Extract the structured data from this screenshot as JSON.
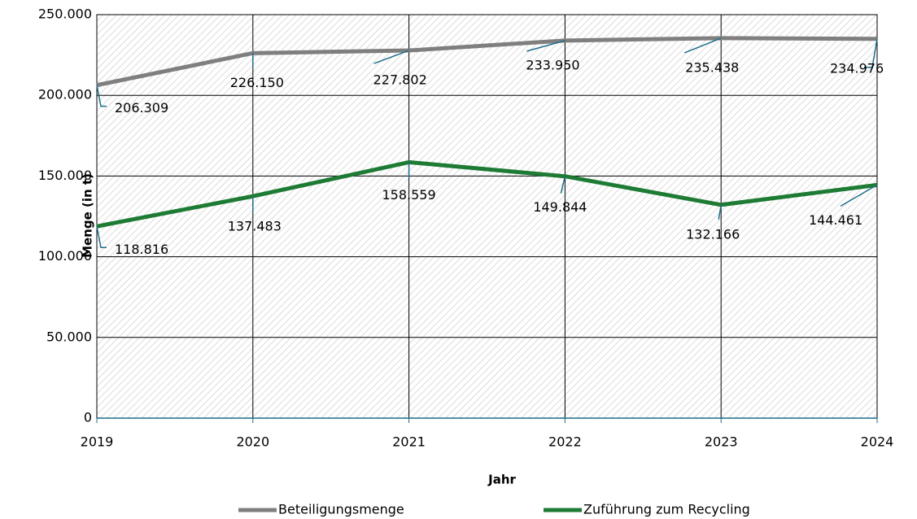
{
  "chart_data": {
    "type": "line",
    "categories": [
      "2019",
      "2020",
      "2021",
      "2022",
      "2023",
      "2024"
    ],
    "series": [
      {
        "name": "Beteiligungsmenge",
        "color": "#7f7f7f",
        "values": [
          206309,
          226150,
          227802,
          233950,
          235438,
          234976
        ],
        "value_labels": [
          "206.309",
          "226.150",
          "227.802",
          "233.950",
          "235.438",
          "234.976"
        ]
      },
      {
        "name": "Zuführung zum Recycling",
        "color": "#1e7b34",
        "values": [
          118816,
          137483,
          158559,
          149844,
          132166,
          144461
        ],
        "value_labels": [
          "118.816",
          "137.483",
          "158.559",
          "149.844",
          "132.166",
          "144.461"
        ]
      }
    ],
    "ylim": [
      0,
      250000
    ],
    "yticks": [
      0,
      {
        "value": 50000,
        "label": "50.000"
      },
      {
        "value": 100000,
        "label": "100.000"
      },
      {
        "value": 150000,
        "label": "150.000"
      },
      {
        "value": 200000,
        "label": "200.000"
      },
      {
        "value": 250000,
        "label": "250.000"
      }
    ],
    "xlabel": "Jahr",
    "ylabel": "Menge (in t)",
    "grid": true,
    "legend": "bottom"
  }
}
